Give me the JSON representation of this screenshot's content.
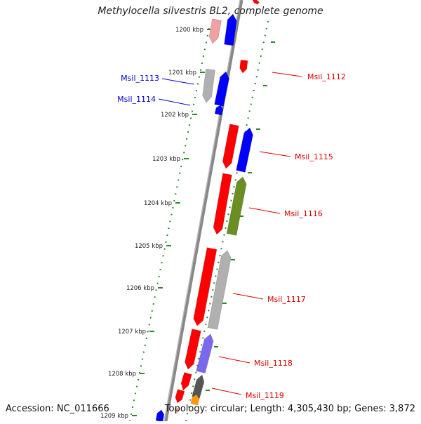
{
  "title": "Methylocella silvestris BL2, complete genome",
  "footer": {
    "accession": "Accession: NC_011666",
    "topology": "Topology: circular; Length: 4,305,430 bp; Genes: 3,872"
  },
  "kbp_ticks": [
    {
      "label": "1200 kbp"
    },
    {
      "label": "1201 kbp"
    },
    {
      "label": "1202 kbp"
    },
    {
      "label": "1203 kbp"
    },
    {
      "label": "1204 kbp"
    },
    {
      "label": "1205 kbp"
    },
    {
      "label": "1206 kbp"
    },
    {
      "label": "1207 kbp"
    },
    {
      "label": "1208 kbp"
    },
    {
      "label": "1209 kbp"
    }
  ],
  "gene_labels": [
    {
      "name": "Msil_1112",
      "color": "#e00000"
    },
    {
      "name": "Msil_1113",
      "color": "#0000cc"
    },
    {
      "name": "Msil_1114",
      "color": "#0000cc"
    },
    {
      "name": "Msil_1115",
      "color": "#e00000"
    },
    {
      "name": "Msil_1116",
      "color": "#e00000"
    },
    {
      "name": "Msil_1117",
      "color": "#e00000"
    },
    {
      "name": "Msil_1118",
      "color": "#e00000"
    },
    {
      "name": "Msil_1119",
      "color": "#e00000"
    }
  ],
  "colors": {
    "backbone": "#888888",
    "tick": "#2a8a2a",
    "cds_red": "#ff0000",
    "cds_blue": "#0000ff",
    "cds_gray": "#b0b0b0",
    "cds_green": "#6b8e23",
    "cds_purple": "#7b68ee",
    "cds_darkgray": "#555555",
    "cds_orange": "#ff9900",
    "cds_pink": "#f0a0a0"
  }
}
